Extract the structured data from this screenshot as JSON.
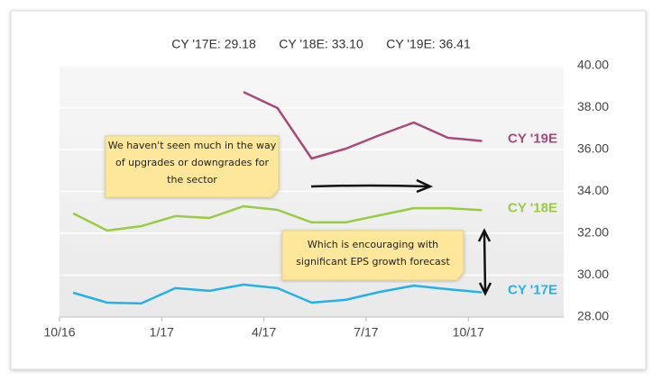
{
  "chart_data": {
    "type": "line",
    "header": [
      "CY '17E: 29.18",
      "CY '18E: 33.10",
      "CY '19E: 36.41"
    ],
    "x": [
      0.4,
      1.4,
      2.4,
      3.4,
      4.4,
      5.4,
      6.4,
      7.4,
      8.4,
      9.4,
      10.4,
      11.4,
      12.4
    ],
    "xlim": [
      0,
      14.8
    ],
    "xticks": [
      {
        "value": 0,
        "label": "10/16"
      },
      {
        "value": 3,
        "label": "1/17"
      },
      {
        "value": 6,
        "label": "4/17"
      },
      {
        "value": 9,
        "label": "7/17"
      },
      {
        "value": 12,
        "label": "10/17"
      }
    ],
    "ylim": [
      28,
      40
    ],
    "yticks": [
      {
        "value": 28,
        "label": "28.00"
      },
      {
        "value": 30,
        "label": "30.00"
      },
      {
        "value": 32,
        "label": "32.00"
      },
      {
        "value": 34,
        "label": "34.00"
      },
      {
        "value": 36,
        "label": "36.00"
      },
      {
        "value": 38,
        "label": "38.00"
      },
      {
        "value": 40,
        "label": "40.00"
      }
    ],
    "grid": true,
    "series": [
      {
        "name": "CY '19E",
        "color": "#a8497a",
        "values": [
          null,
          null,
          null,
          null,
          null,
          38.75,
          37.98,
          35.57,
          36.04,
          36.69,
          37.29,
          36.56,
          36.41
        ]
      },
      {
        "name": "CY '18E",
        "color": "#99cc44",
        "values": [
          32.95,
          32.13,
          32.34,
          32.82,
          32.73,
          33.29,
          33.12,
          32.52,
          32.52,
          32.86,
          33.2,
          33.2,
          33.1
        ]
      },
      {
        "name": "CY '17E",
        "color": "#22b2e8",
        "values": [
          29.16,
          28.69,
          28.65,
          29.38,
          29.25,
          29.55,
          29.38,
          28.69,
          28.82,
          29.2,
          29.5,
          29.33,
          29.18
        ]
      }
    ],
    "annotations": [
      "We haven't seen much in the way of upgrades or downgrades for the sector",
      "Which is encouraging with significant EPS growth forecast"
    ]
  }
}
